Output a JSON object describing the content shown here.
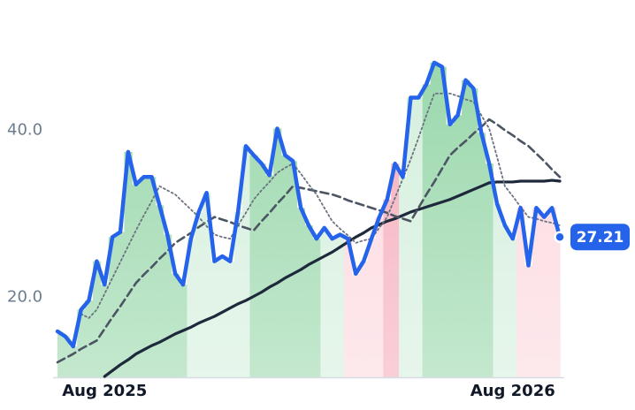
{
  "chart_data": {
    "type": "line",
    "x": [
      null,
      null,
      null,
      null,
      null,
      null,
      "Aug 2025",
      null,
      null,
      null,
      null,
      null,
      null,
      null,
      null,
      null,
      null,
      null,
      null,
      null,
      null,
      null,
      null,
      null,
      null,
      null,
      null,
      null,
      null,
      null,
      null,
      null,
      null,
      null,
      null,
      null,
      null,
      null,
      null,
      null,
      null,
      null,
      null,
      null,
      null,
      null,
      null,
      null,
      null,
      null,
      null,
      null,
      null,
      null,
      null,
      null,
      null,
      null,
      "Aug 2026",
      null,
      null,
      null,
      null,
      null,
      null
    ],
    "series": [
      {
        "color": "#2563eb",
        "style": "solid",
        "values": [
          15.9,
          15.3,
          14.1,
          18.5,
          19.6,
          24.3,
          21.5,
          27.2,
          27.8,
          37.4,
          33.5,
          34.4,
          34.4,
          31.0,
          27.5,
          22.8,
          21.5,
          27.0,
          30.2,
          32.5,
          24.3,
          24.9,
          24.3,
          30.2,
          38.1,
          37.0,
          36.0,
          34.6,
          40.2,
          37.0,
          36.3,
          30.7,
          28.6,
          27.0,
          28.3,
          27.0,
          27.5,
          27.0,
          22.8,
          24.3,
          27.0,
          29.6,
          31.7,
          36.0,
          34.4,
          43.9,
          43.9,
          45.5,
          48.1,
          47.6,
          40.7,
          41.8,
          46.0,
          45.0,
          39.7,
          36.0,
          31.2,
          28.6,
          27.0,
          30.7,
          23.8,
          30.7,
          29.6,
          30.7,
          27.21
        ]
      },
      {
        "color": "#6b7280",
        "style": "dotted",
        "values": [
          null,
          null,
          null,
          18.0,
          17.5,
          18.5,
          20.4,
          22.3,
          24.2,
          26.1,
          28.0,
          29.8,
          31.5,
          33.3,
          32.8,
          32.3,
          31.4,
          30.5,
          29.6,
          28.5,
          27.5,
          27.2,
          27.0,
          28.6,
          30.1,
          31.7,
          32.8,
          33.8,
          34.9,
          35.5,
          36.0,
          34.8,
          33.5,
          32.3,
          30.7,
          29.1,
          28.2,
          27.4,
          26.5,
          26.8,
          27.0,
          28.3,
          29.6,
          31.9,
          34.2,
          36.5,
          39.1,
          41.8,
          44.4,
          44.4,
          44.4,
          44.1,
          43.7,
          43.4,
          41.8,
          40.2,
          36.8,
          33.3,
          32.1,
          30.8,
          29.6,
          29.4,
          29.1,
          28.9,
          28.6
        ]
      },
      {
        "color": "#4b5563",
        "style": "dashed",
        "values": [
          12.2,
          12.7,
          13.2,
          13.8,
          14.3,
          14.8,
          16.2,
          17.6,
          18.9,
          20.3,
          21.7,
          22.7,
          23.6,
          24.6,
          25.5,
          26.5,
          27.1,
          27.7,
          28.4,
          29.0,
          29.6,
          29.3,
          29.0,
          28.6,
          28.3,
          28.0,
          29.1,
          30.1,
          31.2,
          32.2,
          33.3,
          33.1,
          32.9,
          32.7,
          32.5,
          32.3,
          32.0,
          31.6,
          31.3,
          31.0,
          30.7,
          30.4,
          30.1,
          29.7,
          29.4,
          29.1,
          30.7,
          32.3,
          33.8,
          35.4,
          37.0,
          37.9,
          38.7,
          39.6,
          40.4,
          41.3,
          40.7,
          40.0,
          39.4,
          38.7,
          38.1,
          37.2,
          36.3,
          35.3,
          34.4
        ]
      },
      {
        "color": "#1e293b",
        "style": "solid",
        "values": [
          null,
          null,
          null,
          null,
          null,
          null,
          10.5,
          11.2,
          11.9,
          12.5,
          13.2,
          13.7,
          14.2,
          14.6,
          15.1,
          15.6,
          16.0,
          16.4,
          16.9,
          17.3,
          17.7,
          18.2,
          18.7,
          19.2,
          19.6,
          20.1,
          20.6,
          21.2,
          21.7,
          22.3,
          22.8,
          23.3,
          23.9,
          24.4,
          24.9,
          25.4,
          26.0,
          26.6,
          27.2,
          27.7,
          28.3,
          28.7,
          29.1,
          29.4,
          29.8,
          30.2,
          30.5,
          30.8,
          31.1,
          31.4,
          31.7,
          32.1,
          32.5,
          32.9,
          33.3,
          33.7,
          33.8,
          33.8,
          33.8,
          33.9,
          33.9,
          33.9,
          33.9,
          34.0,
          33.9
        ]
      }
    ],
    "regions": [
      {
        "start": 0,
        "end": 16,
        "color": "#93d5a6"
      },
      {
        "start": 17,
        "end": 24,
        "color": "#d2eedb"
      },
      {
        "start": 25,
        "end": 33,
        "color": "#93d5a6"
      },
      {
        "start": 34,
        "end": 36,
        "color": "#d2eedb"
      },
      {
        "start": 37,
        "end": 41,
        "color": "#fcd6dd"
      },
      {
        "start": 42,
        "end": 43,
        "color": "#f5a8b6"
      },
      {
        "start": 44,
        "end": 46,
        "color": "#d2eedb"
      },
      {
        "start": 47,
        "end": 55,
        "color": "#93d5a6"
      },
      {
        "start": 56,
        "end": 58,
        "color": "#d2eedb"
      },
      {
        "start": 59,
        "end": 64,
        "color": "#fcd6dd"
      }
    ],
    "ylim": [
      10.4,
      55.6
    ],
    "yticks": [
      {
        "value": 20,
        "label": "20.0"
      },
      {
        "value": 40,
        "label": "40.0"
      }
    ],
    "grid": false
  }
}
